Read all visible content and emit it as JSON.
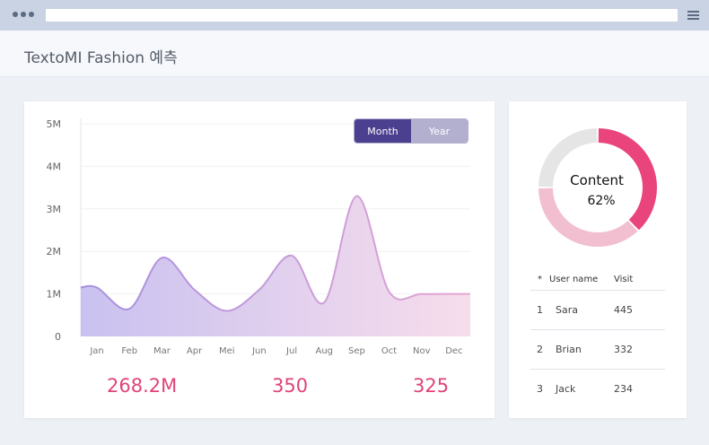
{
  "app": {
    "title": "TextoMI Fashion 예측"
  },
  "toggle": {
    "month": "Month",
    "year": "Year",
    "active": "Month"
  },
  "chart_data": {
    "type": "area",
    "x": [
      "Jan",
      "Feb",
      "Mar",
      "Apr",
      "Mei",
      "Jun",
      "Jul",
      "Aug",
      "Sep",
      "Oct",
      "Nov",
      "Dec"
    ],
    "yticks": [
      "0",
      "1M",
      "2M",
      "3M",
      "4M",
      "5M"
    ],
    "ylim": [
      0,
      5
    ],
    "grid": true,
    "series": [
      {
        "values": [
          1.15,
          0.65,
          1.85,
          1.1,
          0.6,
          1.1,
          1.9,
          0.8,
          3.3,
          1.05,
          1.0,
          1.0
        ]
      }
    ]
  },
  "stats": [
    "268.2M",
    "350",
    "325"
  ],
  "donut": {
    "label": "Content",
    "percent_text": "62%",
    "percent": 62,
    "accent": "#e9457c",
    "secondary": "#f2bfd0",
    "rest": "#e5e5e5"
  },
  "users": {
    "headers": {
      "index": "*",
      "name": "User name",
      "visit": "Visit"
    },
    "rows": [
      {
        "index": "1",
        "name": "Sara",
        "visit": "445"
      },
      {
        "index": "2",
        "name": "Brian",
        "visit": "332"
      },
      {
        "index": "3",
        "name": "Jack",
        "visit": "234"
      }
    ]
  }
}
